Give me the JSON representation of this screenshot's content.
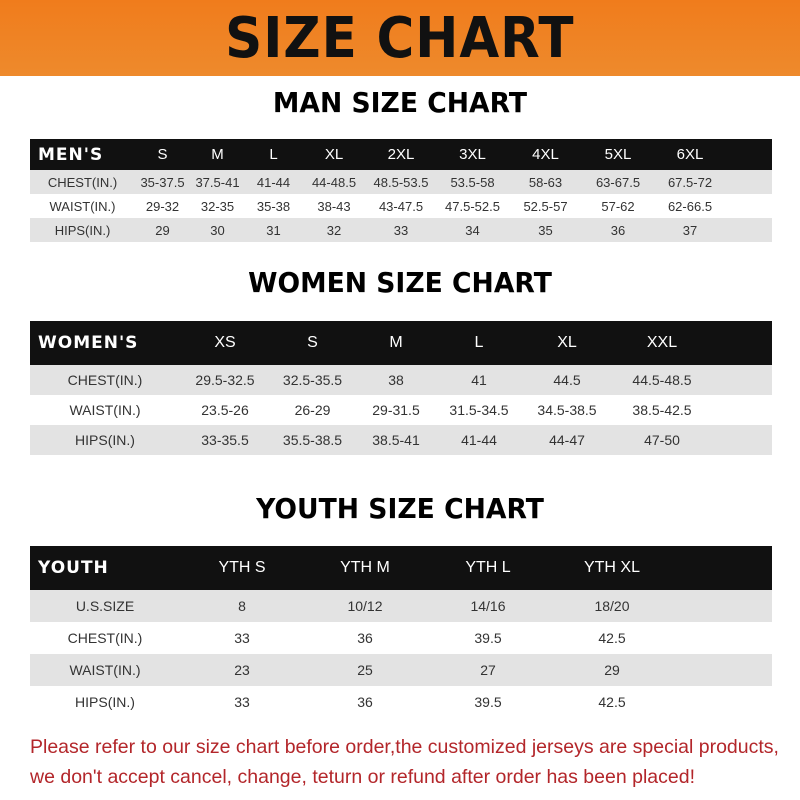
{
  "title": "SIZE CHART",
  "men": {
    "title": "MAN SIZE CHART",
    "header": [
      "MEN'S",
      "S",
      "M",
      "L",
      "XL",
      "2XL",
      "3XL",
      "4XL",
      "5XL",
      "6XL"
    ],
    "rows": [
      [
        "CHEST(IN.)",
        "35-37.5",
        "37.5-41",
        "41-44",
        "44-48.5",
        "48.5-53.5",
        "53.5-58",
        "58-63",
        "63-67.5",
        "67.5-72"
      ],
      [
        "WAIST(IN.)",
        "29-32",
        "32-35",
        "35-38",
        "38-43",
        "43-47.5",
        "47.5-52.5",
        "52.5-57",
        "57-62",
        "62-66.5"
      ],
      [
        "HIPS(IN.)",
        "29",
        "30",
        "31",
        "32",
        "33",
        "34",
        "35",
        "36",
        "37"
      ]
    ]
  },
  "women": {
    "title": "WOMEN SIZE CHART",
    "header": [
      "WOMEN'S",
      "XS",
      "S",
      "M",
      "L",
      "XL",
      "XXL"
    ],
    "rows": [
      [
        "CHEST(IN.)",
        "29.5-32.5",
        "32.5-35.5",
        "38",
        "41",
        "44.5",
        "44.5-48.5"
      ],
      [
        "WAIST(IN.)",
        "23.5-26",
        "26-29",
        "29-31.5",
        "31.5-34.5",
        "34.5-38.5",
        "38.5-42.5"
      ],
      [
        "HIPS(IN.)",
        "33-35.5",
        "35.5-38.5",
        "38.5-41",
        "41-44",
        "44-47",
        "47-50"
      ]
    ]
  },
  "youth": {
    "title": "YOUTH SIZE CHART",
    "header": [
      "YOUTH",
      "YTH S",
      "YTH M",
      "YTH L",
      "YTH XL"
    ],
    "rows": [
      [
        "U.S.SIZE",
        "8",
        "10/12",
        "14/16",
        "18/20"
      ],
      [
        "CHEST(IN.)",
        "33",
        "36",
        "39.5",
        "42.5"
      ],
      [
        "WAIST(IN.)",
        "23",
        "25",
        "27",
        "29"
      ],
      [
        "HIPS(IN.)",
        "33",
        "36",
        "39.5",
        "42.5"
      ]
    ]
  },
  "note": {
    "line1": "Please refer to our size chart before order,the customized jerseys are special products,",
    "line2": "we don't accept cancel, change, teturn or refund after order has been placed!"
  }
}
